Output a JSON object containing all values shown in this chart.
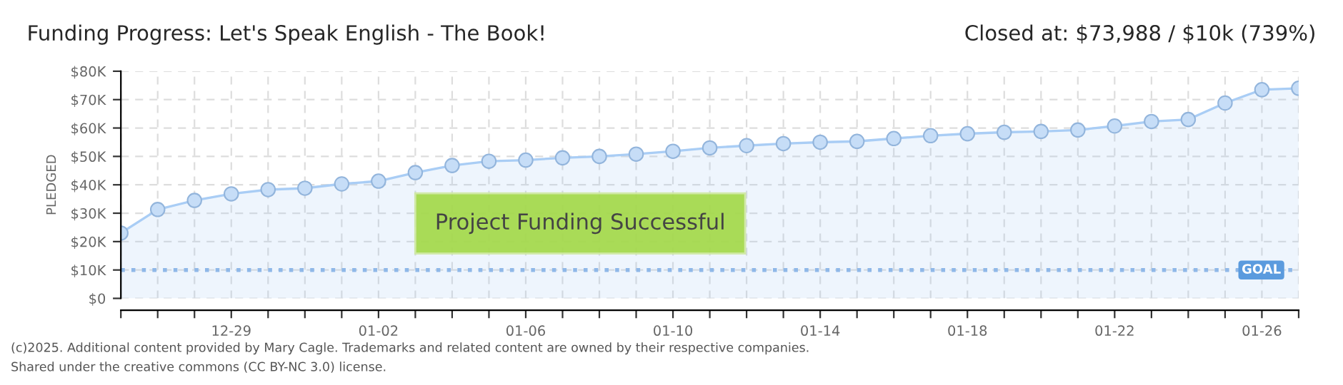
{
  "chart_data": {
    "type": "area",
    "title": "Funding Progress: Let's Speak English - The Book!",
    "subtitle": "Closed at: $73,988 / $10k (739%)",
    "ylabel": "PLEDGED",
    "categories": [
      null,
      null,
      null,
      "12-29",
      null,
      null,
      null,
      "01-02",
      null,
      null,
      null,
      "01-06",
      null,
      null,
      null,
      "01-10",
      null,
      null,
      null,
      "01-14",
      null,
      null,
      null,
      "01-18",
      null,
      null,
      null,
      "01-22",
      null,
      null,
      null,
      "01-26",
      null
    ],
    "series": [
      {
        "color": "#a9cdf5",
        "values": [
          23000,
          31300,
          34500,
          36800,
          38300,
          38800,
          40300,
          41300,
          44300,
          46800,
          48300,
          48700,
          49500,
          50000,
          50800,
          51800,
          53000,
          53800,
          54500,
          55000,
          55300,
          56300,
          57300,
          58000,
          58500,
          58800,
          59300,
          60700,
          62300,
          63000,
          68800,
          73500,
          74000
        ]
      }
    ],
    "ylim": [
      0,
      80000
    ],
    "yticks": [
      {
        "value": 0,
        "label": "$0"
      },
      {
        "value": 10000,
        "label": "$10K"
      },
      {
        "value": 20000,
        "label": "$20K"
      },
      {
        "value": 30000,
        "label": "$30K"
      },
      {
        "value": 40000,
        "label": "$40K"
      },
      {
        "value": 50000,
        "label": "$50K"
      },
      {
        "value": 60000,
        "label": "$60K"
      },
      {
        "value": 70000,
        "label": "$70K"
      },
      {
        "value": 80000,
        "label": "$80K"
      }
    ],
    "ref_lines": [
      {
        "axis": "y",
        "value": 10000,
        "label": "GOAL",
        "color": "#8fb8e8",
        "line_style": "dotted"
      }
    ],
    "annotations": [
      "Project Funding Successful",
      "(c)2025. Additional content provided by Mary Cagle. Trademarks and related content are owned by their respective companies.",
      "Shared under the creative commons (CC BY-NC 3.0) license."
    ],
    "grid": true,
    "marker": "circle",
    "line_style": "solid"
  }
}
